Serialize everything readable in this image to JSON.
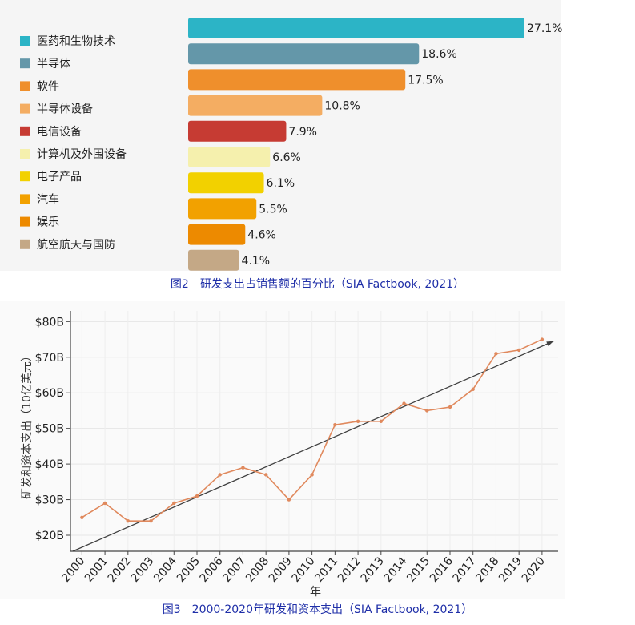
{
  "chart_data": [
    {
      "type": "bar",
      "orientation": "horizontal",
      "legend_position": "left",
      "categories": [
        "医药和生物技术",
        "半导体",
        "软件",
        "半导体设备",
        "电信设备",
        "计算机及外围设备",
        "电子产品",
        "汽车",
        "娱乐",
        "航空航天与国防"
      ],
      "values": [
        27.1,
        18.6,
        17.5,
        10.8,
        7.9,
        6.6,
        6.1,
        5.5,
        4.6,
        4.1
      ],
      "value_labels": [
        "27.1%",
        "18.6%",
        "17.5%",
        "10.8%",
        "7.9%",
        "6.6%",
        "6.1%",
        "5.5%",
        "4.6%",
        "4.1%"
      ],
      "colors": [
        "#2cb4c6",
        "#6497a9",
        "#ef8f2c",
        "#f4ad62",
        "#c63b33",
        "#f5f0ad",
        "#f2d100",
        "#f2a100",
        "#ed8a00",
        "#c4a886"
      ],
      "xlim": [
        0,
        28
      ]
    },
    {
      "type": "line",
      "x": [
        "2000",
        "2001",
        "2002",
        "2003",
        "2004",
        "2005",
        "2006",
        "2007",
        "2008",
        "2009",
        "2010",
        "2011",
        "2012",
        "2013",
        "2014",
        "2015",
        "2016",
        "2017",
        "2018",
        "2019",
        "2020"
      ],
      "series": [
        {
          "values": [
            25,
            29,
            24,
            24,
            29,
            31,
            37,
            39,
            37,
            30,
            37,
            51,
            52,
            52,
            57,
            55,
            56,
            61,
            71,
            72,
            75
          ],
          "color": "#e0895d"
        }
      ],
      "trend_line": {
        "from": [
          1999.6,
          15.5
        ],
        "to": [
          2020.5,
          74.5
        ],
        "color": "#404040"
      },
      "ylabel": "研发和资本支出（10亿美元）",
      "xlabel": "年",
      "yticks": [
        "$20B",
        "$30B",
        "$40B",
        "$50B",
        "$60B",
        "$70B",
        "$80B"
      ],
      "ytick_values": [
        20,
        30,
        40,
        50,
        60,
        70,
        80
      ],
      "ylim": [
        15.5,
        83
      ],
      "grid": true
    }
  ],
  "captions": {
    "fig2": "图2　研发支出占销售额的百分比（SIA Factbook, 2021）",
    "fig3": "图3　2000-2020年研发和资本支出（SIA Factbook, 2021）"
  }
}
